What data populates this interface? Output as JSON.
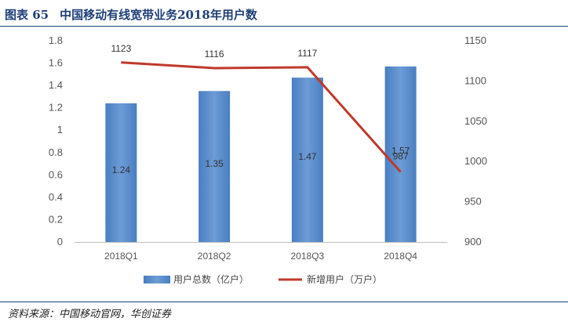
{
  "figure": {
    "label": "图表 65",
    "title": "中国移动有线宽带业务2018年用户数",
    "source": "资料来源：中国移动官网，华创证券"
  },
  "colors": {
    "bar": "#4a7ec1",
    "bar_light": "#6d9cd6",
    "line": "#c0392b",
    "title": "#1f3f78"
  },
  "chart_data": {
    "type": "bar",
    "categories": [
      "2018Q1",
      "2018Q2",
      "2018Q3",
      "2018Q4"
    ],
    "series": [
      {
        "name": "用户总数（亿户）",
        "type": "bar",
        "axis": "left",
        "values": [
          1.24,
          1.35,
          1.47,
          1.57
        ]
      },
      {
        "name": "新增用户（万户）",
        "type": "line",
        "axis": "right",
        "values": [
          1123,
          1116,
          1117,
          987
        ]
      }
    ],
    "y_left": {
      "ylim": [
        0,
        1.8
      ],
      "ticks": [
        "0",
        "0.2",
        "0.4",
        "0.6",
        "0.8",
        "1",
        "1.2",
        "1.4",
        "1.6",
        "1.8"
      ]
    },
    "y_right": {
      "ylim": [
        900,
        1150
      ],
      "ticks": [
        "900",
        "950",
        "1000",
        "1050",
        "1100",
        "1150"
      ]
    },
    "legend_position": "bottom",
    "grid": false
  }
}
